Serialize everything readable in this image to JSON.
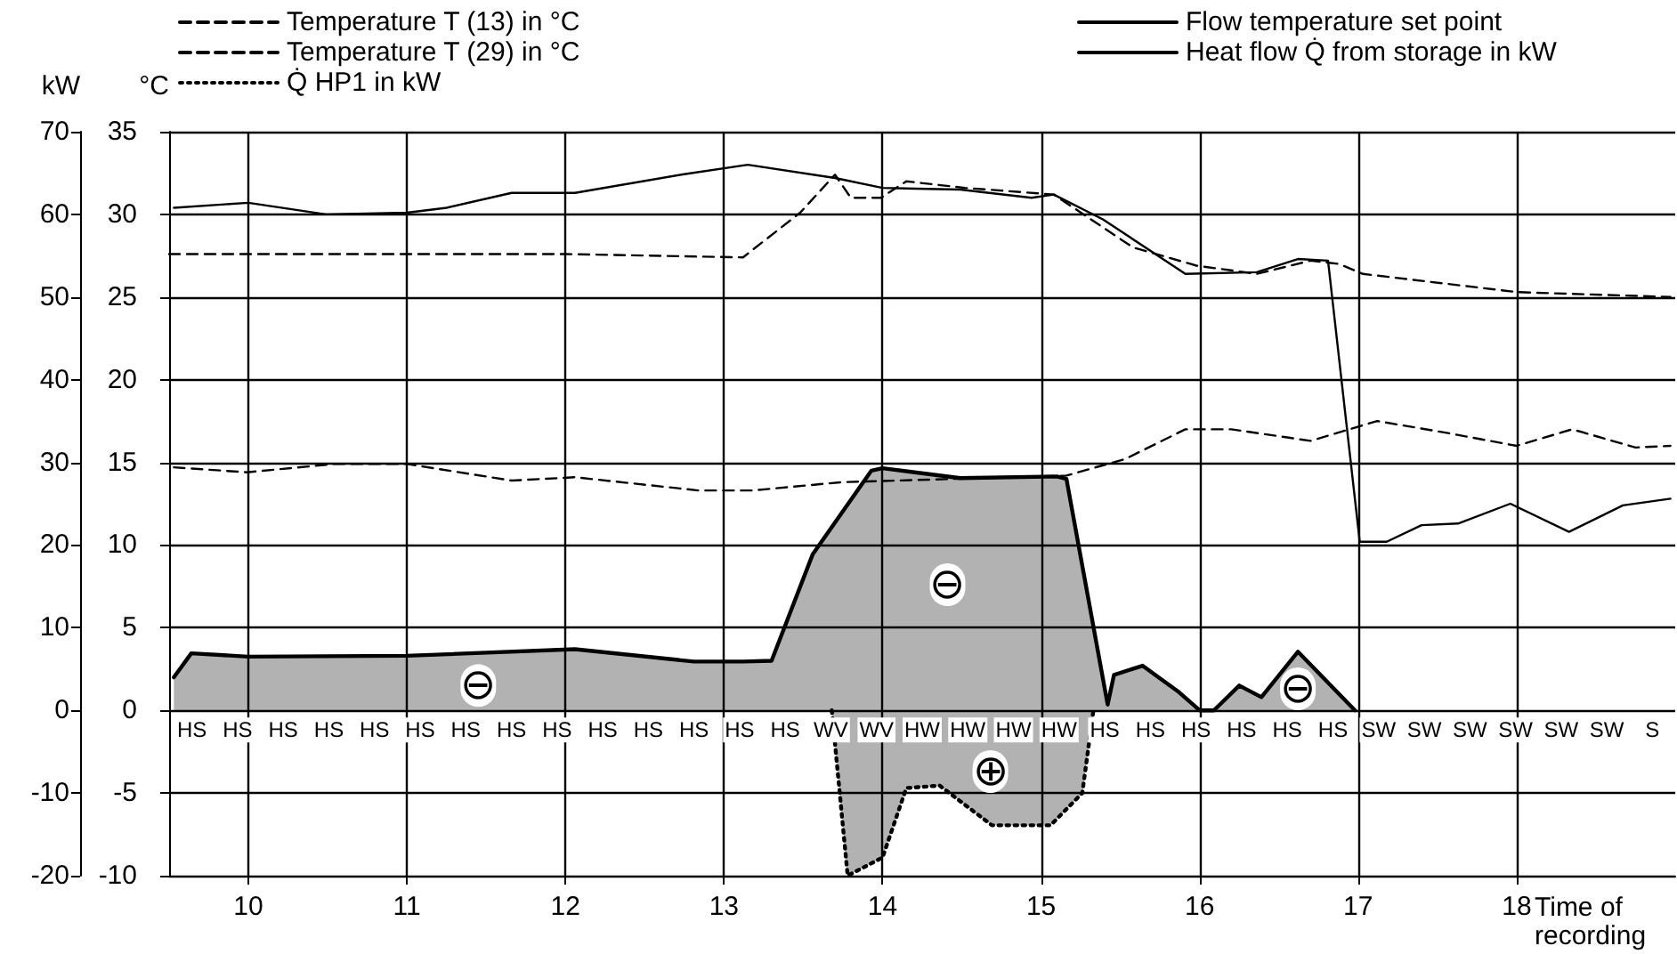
{
  "chart_data": {
    "type": "line",
    "xlabel": "Time of recording",
    "ylabel": "kW",
    "y2label": "°C",
    "xlim": [
      9.5,
      19
    ],
    "xticks": [
      10,
      11,
      12,
      13,
      14,
      15,
      16,
      17,
      18
    ],
    "ylim": [
      -20,
      70
    ],
    "yticks": [
      -20,
      -10,
      0,
      10,
      20,
      30,
      40,
      50,
      60,
      70
    ],
    "y2lim": [
      -10,
      35
    ],
    "y2ticks": [
      -10,
      -5,
      0,
      5,
      10,
      15,
      20,
      25,
      30,
      35
    ],
    "grid": true,
    "legend": "top",
    "marker": "none",
    "series": [
      {
        "name": "Temperature T (13) in °C",
        "color": "#000000",
        "axis": "y2",
        "line_style": "dashed",
        "x": [
          9.5,
          10,
          11,
          12,
          13.12,
          13.48,
          13.7,
          13.8,
          13.99,
          14.15,
          14.52,
          15.08,
          15.58,
          15.98,
          16.36,
          16.7,
          16.88,
          17.03,
          18,
          18.97
        ],
        "values": [
          27.6,
          27.6,
          27.6,
          27.6,
          27.4,
          30.1,
          32.4,
          31,
          31,
          32,
          31.6,
          31.2,
          28,
          26.9,
          26.4,
          27.2,
          27,
          26.4,
          25.3,
          25
        ]
      },
      {
        "name": "Temperature T (29) in °C",
        "color": "#000000",
        "axis": "y2",
        "line_style": "dashed",
        "x": [
          9.53,
          9.99,
          10.54,
          11,
          11.66,
          12.06,
          12.84,
          13.18,
          13.74,
          15.16,
          15.53,
          15.91,
          16.2,
          16.7,
          17.12,
          17.55,
          18,
          18.35,
          18.75,
          18.97
        ],
        "values": [
          14.7,
          14.4,
          14.9,
          14.9,
          13.9,
          14.1,
          13.3,
          13.3,
          13.8,
          14.2,
          15.2,
          17,
          17,
          16.3,
          17.5,
          16.8,
          16,
          17,
          15.9,
          16
        ]
      },
      {
        "name": "Q̇ HP1 in kW",
        "color": "#000000",
        "type": "area",
        "line_style": "dotted",
        "x": [
          13.68,
          13.78,
          14,
          14.15,
          14.36,
          14.69,
          15.06,
          15.26,
          15.33
        ],
        "values": [
          0,
          -20,
          -17.8,
          -9.4,
          -9.1,
          -13.9,
          -13.9,
          -10,
          0
        ]
      },
      {
        "name": "Flow temperature set point",
        "color": "#000000",
        "axis": "y2",
        "line_style": "solid",
        "x": [
          9.53,
          10,
          10.49,
          11,
          11.25,
          11.66,
          12.06,
          12.73,
          13.15,
          13.7,
          14,
          14.49,
          14.94,
          15.08,
          15.39,
          15.91,
          16.36,
          16.62,
          16.81,
          17.01,
          17.18,
          17.4,
          17.63,
          17.96,
          18.33,
          18.67,
          18.97
        ],
        "values": [
          30.4,
          30.7,
          30,
          30.1,
          30.4,
          31.3,
          31.3,
          32.4,
          33,
          32.2,
          31.6,
          31.5,
          31,
          31.2,
          29.7,
          26.4,
          26.5,
          27.3,
          27.2,
          10.2,
          10.2,
          11.2,
          11.3,
          12.5,
          10.8,
          12.4,
          12.8
        ]
      },
      {
        "name": "Heat flow Q̇ from storage in kW",
        "color": "#000000",
        "type": "area",
        "line_style": "solid",
        "x": [
          9.53,
          9.64,
          10,
          11,
          12.06,
          12.81,
          13.12,
          13.3,
          13.56,
          13.93,
          14,
          14.49,
          15.1,
          15.16,
          15.42,
          15.46,
          15.64,
          15.87,
          16,
          16.09,
          16.25,
          16.39,
          16.62,
          16.98
        ],
        "values": [
          4,
          6.9,
          6.5,
          6.6,
          7.4,
          5.9,
          5.9,
          6,
          18.9,
          29,
          29.3,
          28.1,
          28.3,
          28,
          0.7,
          4.3,
          5.4,
          2.2,
          0,
          0,
          3,
          1.6,
          7.1,
          0
        ]
      }
    ],
    "annotations": [
      {
        "text": "⊖",
        "x": 11.45,
        "y": 3
      },
      {
        "text": "⊖",
        "x": 14.41,
        "y": 15.2
      },
      {
        "text": "⊖",
        "x": 16.62,
        "y": 2.6
      },
      {
        "text": "⊕",
        "x": 14.68,
        "y": -7.4
      },
      "HS",
      "HS",
      "HS",
      "HS",
      "HS",
      "HS",
      "HS",
      "HS",
      "HS",
      "HS",
      "HS",
      "HS",
      "HS",
      "HS",
      "WV",
      "WV",
      "HW",
      "HW",
      "HW",
      "HW",
      "HS",
      "HS",
      "HS",
      "HS",
      "HS",
      "HS",
      "SW",
      "SW",
      "SW",
      "SW",
      "SW",
      "SW",
      "S"
    ]
  }
}
